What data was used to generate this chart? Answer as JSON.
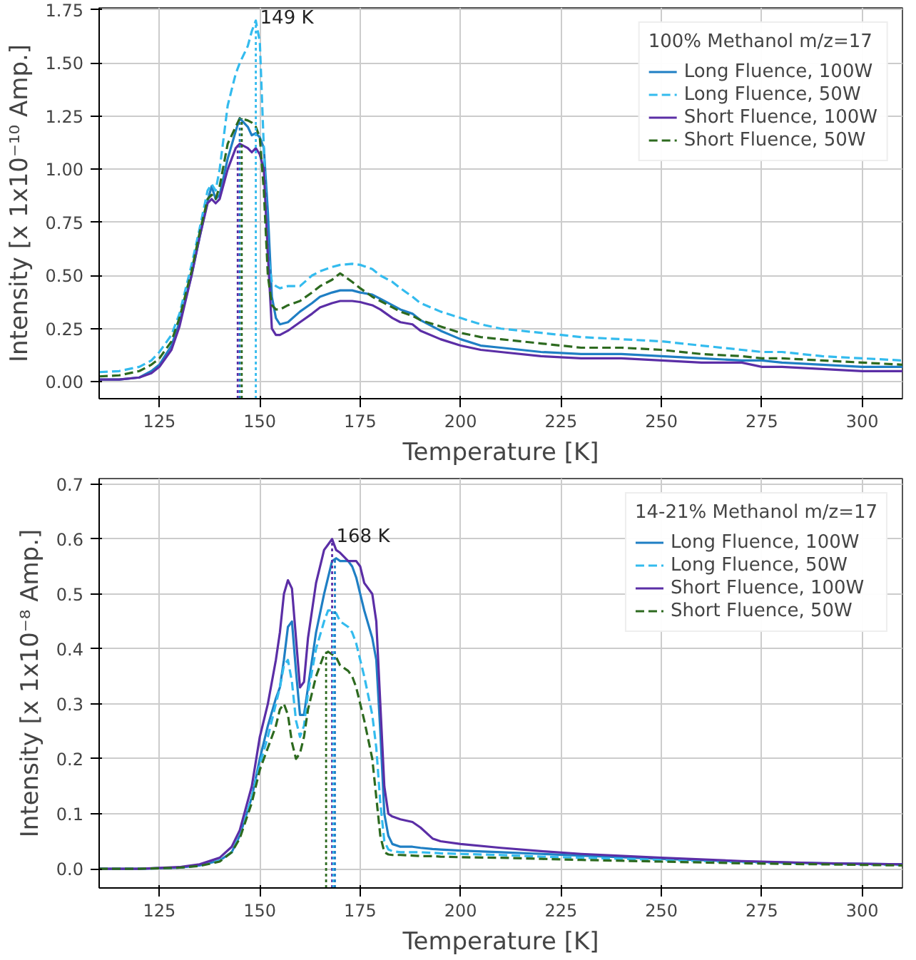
{
  "chart_data": [
    {
      "type": "line",
      "xlabel": "Temperature [K]",
      "ylabel": "Intensity [x 1x10⁻¹⁰ Amp.]",
      "legend_title": "100% Methanol m/z=17",
      "legend": "top right",
      "grid": true,
      "xlim": [
        110,
        310
      ],
      "xticks": [
        125,
        150,
        175,
        200,
        225,
        250,
        275,
        300
      ],
      "ylim": [
        -0.08,
        1.76
      ],
      "yticks": [
        {
          "value": 0,
          "label": "0.00"
        },
        {
          "value": 0.25,
          "label": "0.25"
        },
        {
          "value": 0.5,
          "label": "0.50"
        },
        {
          "value": 0.75,
          "label": "0.75"
        },
        {
          "value": 1,
          "label": "1.00"
        },
        {
          "value": 1.25,
          "label": "1.25"
        },
        {
          "value": 1.5,
          "label": "1.50"
        },
        {
          "value": 1.75,
          "label": "1.75"
        }
      ],
      "annotations": [
        {
          "text": "149 K",
          "x": 149,
          "y": 1.7
        }
      ],
      "x": [
        110,
        115,
        120,
        123,
        125,
        128,
        130,
        133,
        135,
        137,
        138,
        139,
        140,
        142,
        144,
        145,
        147,
        148,
        149,
        150,
        151,
        152,
        153,
        154,
        155,
        157,
        160,
        163,
        165,
        168,
        170,
        173,
        175,
        178,
        180,
        183,
        185,
        188,
        190,
        195,
        200,
        205,
        210,
        220,
        230,
        240,
        250,
        260,
        270,
        275,
        280,
        290,
        300,
        310
      ],
      "series": [
        {
          "name": "Long Fluence, 100W",
          "color": "#1f7fc4",
          "line_style": "solid",
          "values": [
            0.01,
            0.01,
            0.02,
            0.05,
            0.08,
            0.17,
            0.28,
            0.5,
            0.68,
            0.85,
            0.92,
            0.86,
            0.88,
            1.05,
            1.18,
            1.24,
            1.2,
            1.16,
            1.17,
            1.15,
            1.1,
            0.8,
            0.4,
            0.3,
            0.27,
            0.28,
            0.33,
            0.37,
            0.4,
            0.42,
            0.43,
            0.43,
            0.42,
            0.41,
            0.39,
            0.36,
            0.34,
            0.32,
            0.29,
            0.24,
            0.2,
            0.17,
            0.16,
            0.14,
            0.13,
            0.13,
            0.12,
            0.11,
            0.1,
            0.1,
            0.09,
            0.08,
            0.07,
            0.07
          ]
        },
        {
          "name": "Long Fluence, 50W",
          "color": "#33bbee",
          "line_style": "dashed",
          "values": [
            0.045,
            0.05,
            0.07,
            0.1,
            0.14,
            0.22,
            0.32,
            0.55,
            0.72,
            0.9,
            0.93,
            0.9,
            1.0,
            1.3,
            1.45,
            1.5,
            1.58,
            1.65,
            1.7,
            1.6,
            1.1,
            0.6,
            0.47,
            0.45,
            0.44,
            0.45,
            0.45,
            0.5,
            0.52,
            0.54,
            0.55,
            0.555,
            0.55,
            0.53,
            0.5,
            0.47,
            0.44,
            0.4,
            0.37,
            0.33,
            0.3,
            0.27,
            0.25,
            0.23,
            0.21,
            0.2,
            0.19,
            0.17,
            0.15,
            0.14,
            0.14,
            0.12,
            0.11,
            0.1
          ]
        },
        {
          "name": "Short Fluence, 100W",
          "color": "#5b2ea6",
          "line_style": "solid",
          "values": [
            0.01,
            0.01,
            0.02,
            0.04,
            0.07,
            0.15,
            0.26,
            0.5,
            0.68,
            0.84,
            0.86,
            0.84,
            0.86,
            1.0,
            1.1,
            1.12,
            1.1,
            1.08,
            1.1,
            1.07,
            1.0,
            0.6,
            0.25,
            0.22,
            0.22,
            0.24,
            0.28,
            0.32,
            0.35,
            0.37,
            0.38,
            0.38,
            0.375,
            0.36,
            0.34,
            0.3,
            0.28,
            0.27,
            0.24,
            0.2,
            0.17,
            0.15,
            0.14,
            0.12,
            0.11,
            0.11,
            0.1,
            0.09,
            0.09,
            0.07,
            0.07,
            0.06,
            0.05,
            0.05
          ]
        },
        {
          "name": "Short Fluence, 50W",
          "color": "#2d6a1f",
          "line_style": "dashed",
          "values": [
            0.025,
            0.03,
            0.05,
            0.08,
            0.11,
            0.19,
            0.3,
            0.52,
            0.7,
            0.86,
            0.88,
            0.86,
            0.92,
            1.12,
            1.2,
            1.24,
            1.23,
            1.22,
            1.2,
            1.15,
            0.9,
            0.5,
            0.36,
            0.34,
            0.34,
            0.36,
            0.38,
            0.42,
            0.45,
            0.48,
            0.51,
            0.47,
            0.44,
            0.4,
            0.38,
            0.35,
            0.33,
            0.31,
            0.29,
            0.26,
            0.23,
            0.21,
            0.2,
            0.18,
            0.16,
            0.16,
            0.15,
            0.13,
            0.12,
            0.11,
            0.11,
            0.1,
            0.09,
            0.08
          ]
        },
        {
          "type": "line",
          "color": "#1f7fc4",
          "line_style": "dotted",
          "x": [
            145,
            145
          ],
          "values": [
            -0.08,
            1.24
          ]
        },
        {
          "type": "line",
          "color": "#5b2ea6",
          "line_style": "dotted",
          "x": [
            144.5,
            144.5
          ],
          "values": [
            -0.08,
            1.12
          ]
        },
        {
          "type": "line",
          "color": "#2d6a1f",
          "line_style": "dotted",
          "x": [
            145.5,
            145.5
          ],
          "values": [
            -0.08,
            1.24
          ]
        },
        {
          "type": "line",
          "color": "#33bbee",
          "line_style": "dotted",
          "x": [
            149,
            149
          ],
          "values": [
            -0.08,
            1.7
          ]
        }
      ]
    },
    {
      "type": "line",
      "xlabel": "Temperature [K]",
      "ylabel": "Intensity [x 1x10⁻⁸ Amp.]",
      "legend_title": "14-21% Methanol m/z=17",
      "legend": "top right",
      "grid": true,
      "xlim": [
        110,
        310
      ],
      "xticks": [
        125,
        150,
        175,
        200,
        225,
        250,
        275,
        300
      ],
      "ylim": [
        -0.035,
        0.71
      ],
      "yticks": [
        {
          "value": 0,
          "label": "0.0"
        },
        0.1,
        0.2,
        0.3,
        0.4,
        0.5,
        0.6,
        0.7
      ],
      "annotations": [
        {
          "text": "168 K",
          "x": 168,
          "y": 0.6
        }
      ],
      "x": [
        110,
        120,
        130,
        135,
        140,
        143,
        145,
        148,
        150,
        152,
        154,
        155,
        156,
        157,
        158,
        159,
        160,
        161,
        162,
        164,
        166,
        167,
        168,
        169,
        170,
        172,
        173,
        174,
        175,
        176,
        178,
        179,
        180,
        181,
        182,
        183,
        185,
        188,
        190,
        193,
        195,
        200,
        210,
        220,
        230,
        250,
        270,
        290,
        310
      ],
      "series": [
        {
          "name": "Long Fluence, 100W",
          "color": "#1f7fc4",
          "line_style": "solid",
          "values": [
            0,
            0,
            0.002,
            0.006,
            0.015,
            0.03,
            0.06,
            0.13,
            0.2,
            0.26,
            0.31,
            0.33,
            0.38,
            0.44,
            0.45,
            0.36,
            0.28,
            0.28,
            0.33,
            0.43,
            0.5,
            0.53,
            0.56,
            0.565,
            0.56,
            0.56,
            0.55,
            0.53,
            0.5,
            0.47,
            0.42,
            0.38,
            0.25,
            0.1,
            0.06,
            0.045,
            0.04,
            0.04,
            0.038,
            0.036,
            0.035,
            0.033,
            0.03,
            0.027,
            0.024,
            0.018,
            0.013,
            0.01,
            0.008
          ]
        },
        {
          "name": "Long Fluence, 50W",
          "color": "#33bbee",
          "line_style": "dashed",
          "values": [
            0,
            0,
            0.002,
            0.006,
            0.015,
            0.03,
            0.06,
            0.13,
            0.19,
            0.24,
            0.3,
            0.33,
            0.37,
            0.38,
            0.34,
            0.27,
            0.24,
            0.26,
            0.32,
            0.4,
            0.45,
            0.47,
            0.47,
            0.465,
            0.45,
            0.44,
            0.43,
            0.41,
            0.38,
            0.35,
            0.28,
            0.22,
            0.12,
            0.05,
            0.035,
            0.032,
            0.03,
            0.03,
            0.03,
            0.029,
            0.028,
            0.027,
            0.025,
            0.022,
            0.02,
            0.016,
            0.012,
            0.009,
            0.007
          ]
        },
        {
          "name": "Short Fluence, 100W",
          "color": "#5b2ea6",
          "line_style": "solid",
          "values": [
            0,
            0,
            0.003,
            0.008,
            0.02,
            0.04,
            0.07,
            0.15,
            0.24,
            0.3,
            0.38,
            0.43,
            0.5,
            0.525,
            0.51,
            0.42,
            0.33,
            0.34,
            0.42,
            0.52,
            0.58,
            0.59,
            0.6,
            0.58,
            0.575,
            0.56,
            0.56,
            0.56,
            0.55,
            0.52,
            0.5,
            0.45,
            0.3,
            0.15,
            0.1,
            0.095,
            0.09,
            0.085,
            0.075,
            0.055,
            0.05,
            0.045,
            0.038,
            0.032,
            0.027,
            0.02,
            0.014,
            0.01,
            0.008
          ]
        },
        {
          "name": "Short Fluence, 50W",
          "color": "#2d6a1f",
          "line_style": "dashed",
          "values": [
            0,
            0,
            0.002,
            0.005,
            0.013,
            0.03,
            0.055,
            0.12,
            0.18,
            0.22,
            0.26,
            0.29,
            0.3,
            0.28,
            0.23,
            0.2,
            0.21,
            0.24,
            0.29,
            0.35,
            0.39,
            0.395,
            0.39,
            0.385,
            0.37,
            0.36,
            0.35,
            0.33,
            0.3,
            0.27,
            0.2,
            0.13,
            0.06,
            0.03,
            0.026,
            0.025,
            0.025,
            0.024,
            0.023,
            0.023,
            0.022,
            0.021,
            0.02,
            0.018,
            0.016,
            0.013,
            0.01,
            0.008,
            0.006
          ]
        },
        {
          "type": "line",
          "color": "#2d6a1f",
          "line_style": "dotted",
          "x": [
            166.5,
            166.5
          ],
          "values": [
            -0.035,
            0.395
          ]
        },
        {
          "type": "line",
          "color": "#5b2ea6",
          "line_style": "dotted",
          "x": [
            168,
            168
          ],
          "values": [
            -0.035,
            0.6
          ]
        },
        {
          "type": "line",
          "color": "#33bbee",
          "line_style": "dotted",
          "x": [
            168.3,
            168.3
          ],
          "values": [
            -0.035,
            0.47
          ]
        },
        {
          "type": "line",
          "color": "#1f7fc4",
          "line_style": "dotted",
          "x": [
            168.7,
            168.7
          ],
          "values": [
            -0.035,
            0.565
          ]
        }
      ]
    }
  ]
}
